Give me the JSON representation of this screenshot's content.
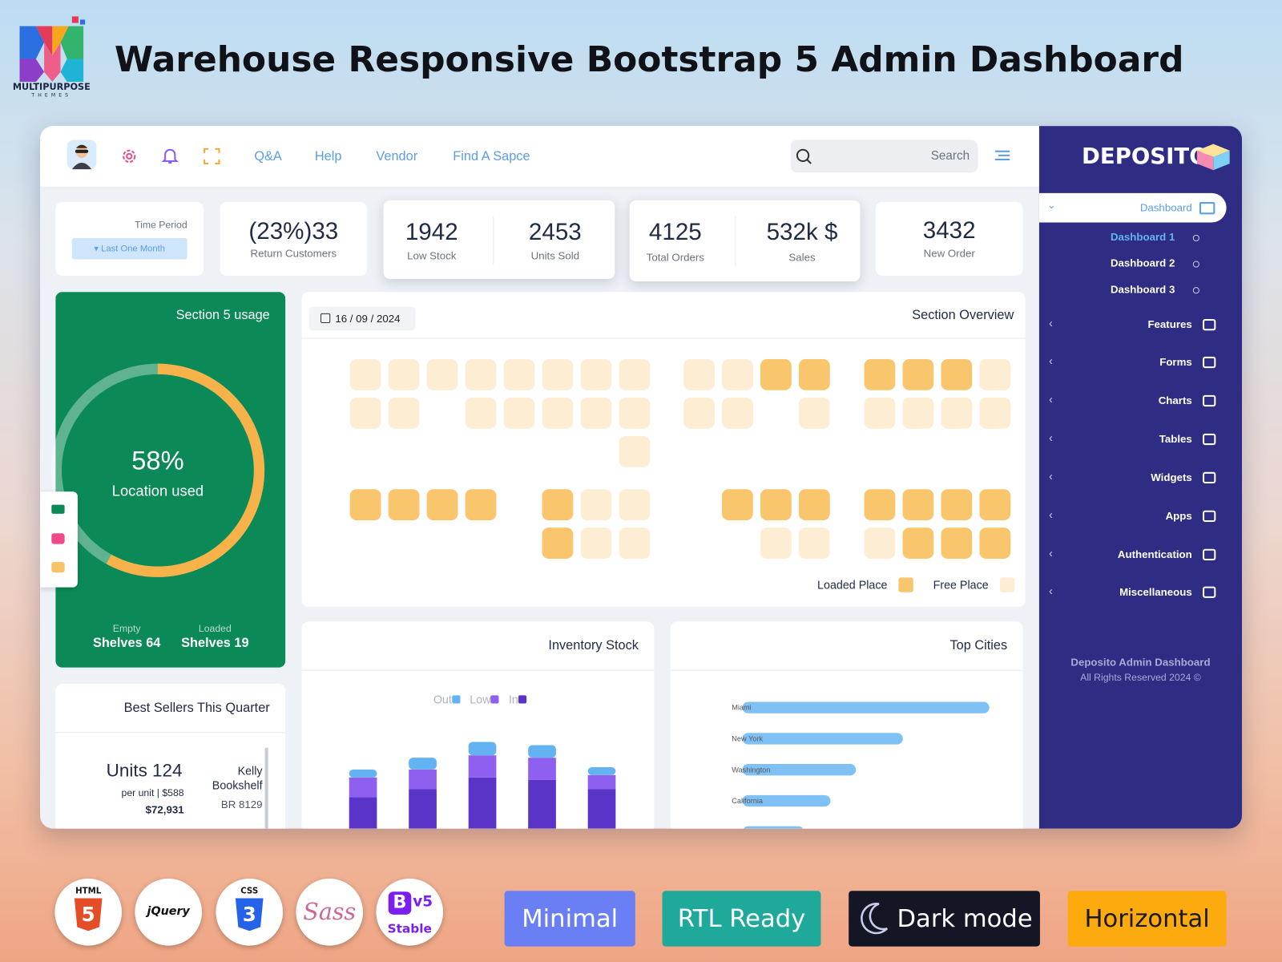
{
  "header": {
    "brand": "MULTIPURPOSE",
    "brand_sub": "THEMES",
    "title": "Warehouse Responsive Bootstrap 5 Admin Dashboard"
  },
  "topbar": {
    "links": [
      "Q&A",
      "Help",
      "Vendor",
      "Find A Sapce"
    ],
    "search": "Search"
  },
  "sidebar": {
    "logo": "DEPOSITO",
    "active": "Dashboard",
    "submenu": [
      "Dashboard 1",
      "Dashboard 2",
      "Dashboard 3"
    ],
    "menu": [
      "Features",
      "Forms",
      "Charts",
      "Tables",
      "Widgets",
      "Apps",
      "Authentication",
      "Miscellaneous"
    ],
    "footer": [
      "Deposito Admin Dashboard",
      "All Rights Reserved 2024 ©"
    ]
  },
  "stats": {
    "time_period": {
      "label": "Time Period",
      "button": "Last One Month"
    },
    "cards": [
      {
        "value": "(23%)33",
        "label": "Return Customers"
      },
      {
        "value": "1942",
        "label": "Low Stock"
      },
      {
        "value": "2453",
        "label": "Units Sold"
      },
      {
        "value": "4125",
        "label": "Total Orders"
      },
      {
        "value": "532k $",
        "label": "Sales"
      },
      {
        "value": "3432",
        "label": "New Order"
      }
    ]
  },
  "shelves": {
    "empty_label": "Empty",
    "empty_value": "Shelves 64",
    "loaded_label": "Loaded",
    "loaded_value": "Shelves 19"
  },
  "section_overview": {
    "title": "Section Overview",
    "date": "16 / 09 / 2024",
    "loaded_label": "Loaded Place",
    "loaded_color": "#f9c66d",
    "free_label": "Free Place",
    "free_color": "#fdedd3",
    "slots": [
      [
        0,
        0,
        0,
        0,
        0,
        0,
        0,
        0,
        0,
        0,
        1,
        1,
        1,
        1,
        1,
        0
      ],
      [
        0,
        0,
        null,
        0,
        0,
        0,
        0,
        0,
        0,
        0,
        null,
        0,
        0,
        0,
        0,
        0
      ],
      [
        null,
        null,
        null,
        null,
        null,
        null,
        null,
        0,
        null,
        null,
        null,
        null,
        null,
        null,
        null,
        null
      ],
      [
        1,
        1,
        1,
        1,
        null,
        1,
        0,
        0,
        null,
        1,
        1,
        1,
        1,
        1,
        1,
        1
      ],
      [
        null,
        null,
        null,
        null,
        null,
        1,
        0,
        0,
        null,
        null,
        0,
        0,
        0,
        1,
        1,
        1
      ]
    ]
  },
  "best_sellers": {
    "title": "Best Sellers This Quarter",
    "units": "Units 124",
    "price": "per unit | $588",
    "total": "$72,931",
    "name": [
      "Kelly",
      "Bookshelf"
    ],
    "code": "BR 8129"
  },
  "chart_data": [
    {
      "type": "donut",
      "title": "Section 5 usage",
      "values": [
        58
      ],
      "value_labels": [
        "58%"
      ],
      "label": "Location used",
      "color": "#f8b24a"
    },
    {
      "type": "bar",
      "stacked": true,
      "title": "Inventory Stock",
      "categories": [
        null,
        null,
        null,
        null,
        null
      ],
      "series": [
        {
          "name": "Out",
          "color": "#63b3f2",
          "values": [
            10,
            15,
            17,
            16,
            10
          ]
        },
        {
          "name": "Low",
          "color": "#8f5ff0",
          "values": [
            25,
            25,
            28,
            28,
            18
          ]
        },
        {
          "name": "In",
          "color": "#5a33c9",
          "values": [
            40,
            50,
            65,
            62,
            50
          ]
        }
      ]
    },
    {
      "type": "bar",
      "horizontal": true,
      "title": "Top Cities",
      "categories": [
        "Miami",
        "New York",
        "Washington",
        "California",
        null
      ],
      "values": [
        300,
        195,
        138,
        107,
        75
      ],
      "color": "#80c1f5"
    }
  ],
  "badges": {
    "icons": [
      {
        "glyph": "5",
        "label": "HTML"
      },
      {
        "label": "jQuery"
      },
      {
        "glyph": "3",
        "label": "CSS"
      },
      {
        "label": "Sass"
      },
      {
        "glyph": "B",
        "label": "v5",
        "note": "Stable"
      }
    ],
    "tags": [
      "Minimal",
      "RTL Ready",
      "Dark mode",
      "Horizontal"
    ]
  }
}
